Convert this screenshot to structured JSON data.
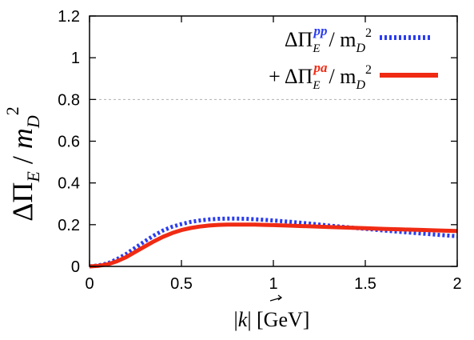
{
  "chart_data": {
    "type": "line",
    "xlabel": {
      "pre": "|",
      "vec": "k",
      "post": "|  [GeV]"
    },
    "ylabel": {
      "delta": "ΔΠ",
      "sub": "E",
      "slash": " / ",
      "m": "m",
      "msub": "D",
      "sup": "2"
    },
    "xlim": [
      0,
      2
    ],
    "ylim": [
      0,
      1.2
    ],
    "xticks": [
      "0",
      "0.5",
      "1",
      "1.5",
      "2"
    ],
    "yticks": [
      "0",
      "0.2",
      "0.4",
      "0.6",
      "0.8",
      "1",
      "1.2"
    ],
    "reference_line": {
      "y": 0.8,
      "style": "dashed",
      "color": "#b0b0b0"
    },
    "legend_position": "top-right",
    "series": [
      {
        "legend": {
          "prefix": "",
          "delta": "ΔΠ",
          "sub": "E",
          "sup": "pp",
          "rest": "/ m",
          "msub": "D",
          "msup": "2"
        },
        "color": "#2a3cf0",
        "style": "dotted",
        "x": [
          0,
          0.05,
          0.1,
          0.15,
          0.2,
          0.25,
          0.3,
          0.35,
          0.4,
          0.45,
          0.5,
          0.55,
          0.6,
          0.65,
          0.7,
          0.75,
          0.8,
          0.85,
          0.9,
          0.95,
          1.0,
          1.1,
          1.2,
          1.3,
          1.4,
          1.5,
          1.6,
          1.7,
          1.8,
          1.9,
          2.0
        ],
        "y": [
          0,
          0.005,
          0.015,
          0.035,
          0.06,
          0.09,
          0.12,
          0.148,
          0.172,
          0.19,
          0.203,
          0.213,
          0.22,
          0.225,
          0.228,
          0.229,
          0.229,
          0.228,
          0.226,
          0.223,
          0.22,
          0.213,
          0.205,
          0.196,
          0.188,
          0.18,
          0.172,
          0.165,
          0.158,
          0.151,
          0.145
        ]
      },
      {
        "legend": {
          "prefix": "+ ",
          "delta": "ΔΠ",
          "sub": "E",
          "sup": "pa",
          "rest": "/ m",
          "msub": "D",
          "msup": "2"
        },
        "color": "#f02b14",
        "style": "solid",
        "x": [
          0,
          0.05,
          0.1,
          0.15,
          0.2,
          0.25,
          0.3,
          0.35,
          0.4,
          0.45,
          0.5,
          0.55,
          0.6,
          0.65,
          0.7,
          0.75,
          0.8,
          0.85,
          0.9,
          0.95,
          1.0,
          1.1,
          1.2,
          1.3,
          1.4,
          1.5,
          1.6,
          1.7,
          1.8,
          1.9,
          2.0
        ],
        "y": [
          0,
          0.003,
          0.01,
          0.025,
          0.045,
          0.07,
          0.095,
          0.12,
          0.142,
          0.16,
          0.174,
          0.184,
          0.191,
          0.196,
          0.199,
          0.2,
          0.2,
          0.2,
          0.2,
          0.199,
          0.198,
          0.195,
          0.192,
          0.189,
          0.186,
          0.183,
          0.18,
          0.177,
          0.175,
          0.172,
          0.17
        ]
      }
    ]
  }
}
